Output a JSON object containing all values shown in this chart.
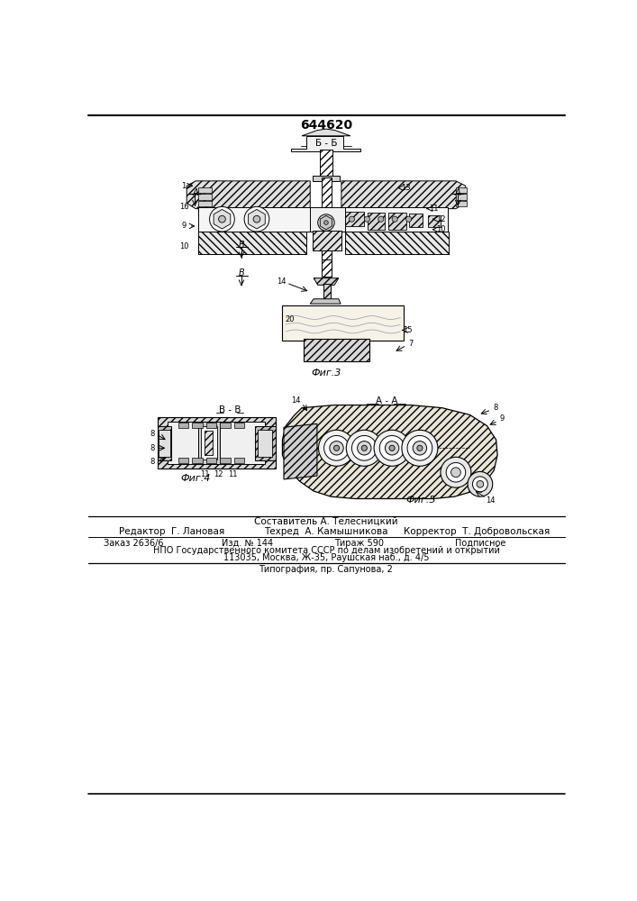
{
  "patent_number": "644620",
  "bg": "#ffffff",
  "black": "#000000",
  "gray_light": "#e8e8e8",
  "gray_mid": "#c8c8c8",
  "gray_dark": "#a0a0a0",
  "hatch_dense": "////",
  "hatch_cross": "xxxx",
  "hatch_back": "\\\\\\\\",
  "fig3_caption": "Фиг.3",
  "fig4_caption": "Фиг.4",
  "fig5_caption": "Фиг.5",
  "lbl_BB": "Б - Б",
  "lbl_BB2": "В - В",
  "lbl_AA": "А - А",
  "lbl_A": "А",
  "footer_composer": "Составитель А. Телесницкий",
  "footer_editor": "Редактор  Г. Лановая",
  "footer_techred": "Техред  А. Камышникова",
  "footer_corrector": "Корректор  Т. Добровольская",
  "footer_order": "Заказ 2636/6",
  "footer_izd": "Изд. № 144",
  "footer_tirazh": "Тираж 590",
  "footer_podpisnoe": "Подписное",
  "footer_npo": "НПО Государственного комитета СССР по делам изобретений и открытий",
  "footer_address": "113035, Москва, Ж-35, Раушская наб., д. 4/5",
  "footer_typography": "Типография, пр. Сапунова, 2"
}
